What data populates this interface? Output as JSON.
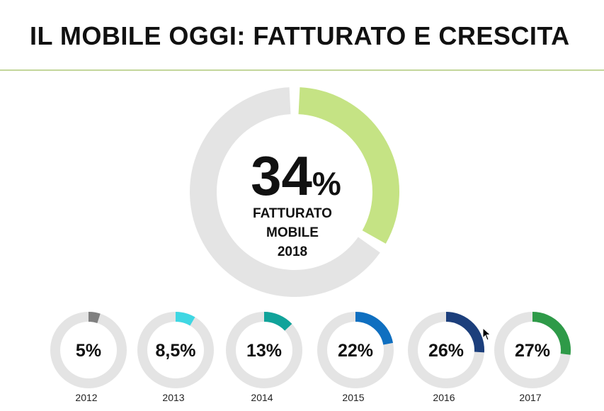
{
  "slide": {
    "title": "IL MOBILE OGGI: FATTURATO E CRESCITA"
  },
  "chart_data": [
    {
      "type": "pie",
      "style": "donut",
      "values": [
        34,
        66
      ],
      "value_label": "34%",
      "value_number": "34",
      "value_unit": "%",
      "caption_lines": [
        "FATTURATO",
        "MOBILE",
        "2018"
      ],
      "colors": [
        "#c5e384",
        "#e4e4e4"
      ]
    },
    {
      "type": "pie",
      "style": "donut-row",
      "series": [
        {
          "year": "2012",
          "value": 5,
          "label": "5%",
          "color": "#808080"
        },
        {
          "year": "2013",
          "value": 8.5,
          "label": "8,5%",
          "color": "#3fd7e3"
        },
        {
          "year": "2014",
          "value": 13,
          "label": "13%",
          "color": "#11a39a"
        },
        {
          "year": "2015",
          "value": 22,
          "label": "22%",
          "color": "#0f6fc0"
        },
        {
          "year": "2016",
          "value": 26,
          "label": "26%",
          "color": "#1c3f7c"
        },
        {
          "year": "2017",
          "value": 27,
          "label": "27%",
          "color": "#2e9a48"
        }
      ],
      "track_color": "#e4e4e4"
    }
  ]
}
